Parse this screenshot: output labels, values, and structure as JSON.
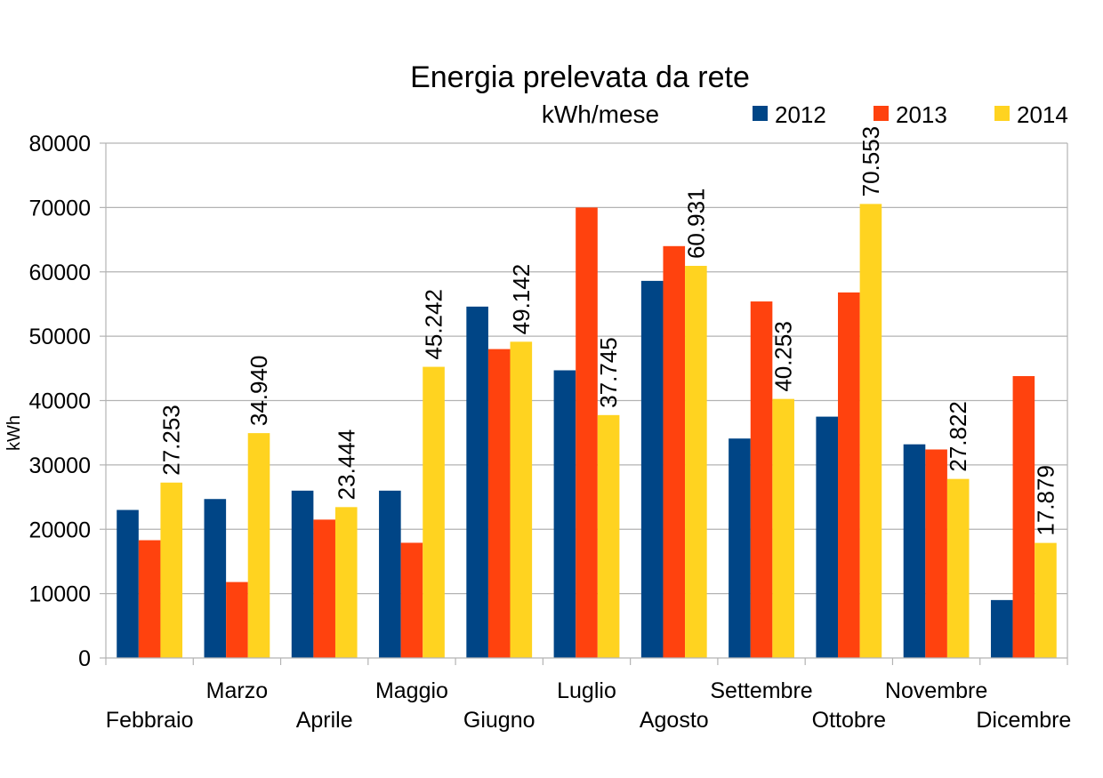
{
  "chart_data": {
    "type": "bar",
    "title": "Energia prelevata da rete",
    "subtitle": "kWh/mese",
    "ylabel": "kWh",
    "xlabel": "",
    "ylim": [
      0,
      80000
    ],
    "yticks": [
      0,
      10000,
      20000,
      30000,
      40000,
      50000,
      60000,
      70000,
      80000
    ],
    "grid": true,
    "legend_position": "top-right",
    "categories": [
      "Febbraio",
      "Marzo",
      "Aprile",
      "Maggio",
      "Giugno",
      "Luglio",
      "Agosto",
      "Settembre",
      "Ottobre",
      "Novembre",
      "Dicembre"
    ],
    "series": [
      {
        "name": "2012",
        "color": "#004586",
        "values": [
          23000,
          24700,
          26000,
          26000,
          54600,
          44700,
          58600,
          34100,
          37500,
          33200,
          9000
        ]
      },
      {
        "name": "2013",
        "color": "#ff420e",
        "values": [
          18300,
          11800,
          21500,
          17900,
          48000,
          70000,
          64000,
          55400,
          56800,
          32400,
          43800
        ]
      },
      {
        "name": "2014",
        "color": "#ffd320",
        "values": [
          27253,
          34940,
          23444,
          45242,
          49142,
          37745,
          60931,
          40253,
          70553,
          27822,
          17879
        ]
      }
    ],
    "data_labels": {
      "series": "2014",
      "texts": [
        "27.253",
        "34.940",
        "23.444",
        "45.242",
        "49.142",
        "37.745",
        "60.931",
        "40.253",
        "70.553",
        "27.822",
        "17.879"
      ]
    }
  }
}
